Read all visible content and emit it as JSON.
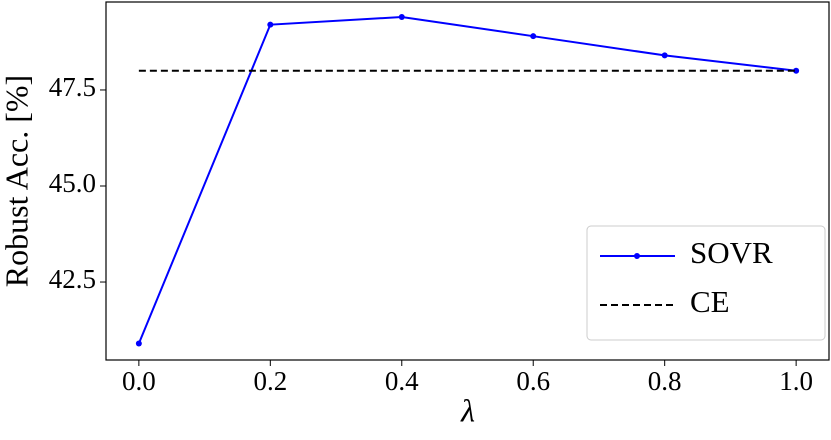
{
  "chart_data": {
    "type": "line",
    "x_label": "λ",
    "y_label": "Robust Acc. [%]",
    "x": [
      0.0,
      0.2,
      0.4,
      0.6,
      0.8,
      1.0
    ],
    "series": [
      {
        "name": "SOVR",
        "color": "#0000ff",
        "linestyle": "solid",
        "marker": true,
        "values": [
          40.9,
          49.2,
          49.4,
          48.9,
          48.4,
          48.0
        ]
      },
      {
        "name": "CE",
        "color": "#000000",
        "linestyle": "dashed",
        "marker": false,
        "values": [
          48.0,
          48.0,
          48.0,
          48.0,
          48.0,
          48.0
        ]
      }
    ],
    "xlim": [
      -0.05,
      1.05
    ],
    "ylim": [
      40.47,
      49.79
    ],
    "xticks": [
      {
        "value": 0,
        "label": "0.0"
      },
      0.2,
      0.4,
      0.6,
      0.8,
      {
        "value": 1,
        "label": "1.0"
      }
    ],
    "yticks": [
      42.5,
      {
        "value": 45,
        "label": "45.0"
      },
      47.5
    ],
    "grid": false,
    "legend": "lower right"
  }
}
